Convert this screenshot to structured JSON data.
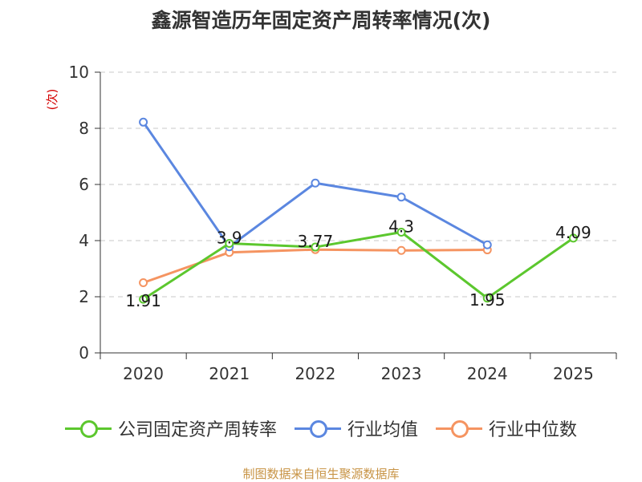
{
  "chart_data": {
    "type": "line",
    "title": "鑫源智造历年固定资产周转率情况(次)",
    "ylabel": "(次)",
    "xlabel": "",
    "ylim": [
      0,
      10
    ],
    "yticks": [
      "0",
      "2",
      "4",
      "6",
      "8",
      "10"
    ],
    "categories": [
      "2020",
      "2021",
      "2022",
      "2023",
      "2024",
      "2025"
    ],
    "grid": true,
    "legend_position": "bottom",
    "series": [
      {
        "name": "公司固定资产周转率",
        "color": "#5cc72e",
        "values": [
          1.91,
          3.9,
          3.77,
          4.3,
          1.95,
          4.09
        ],
        "labels": [
          "1.91",
          "3.9",
          "3.77",
          "4.3",
          "1.95",
          "4.09"
        ]
      },
      {
        "name": "行业均值",
        "color": "#5b87e0",
        "values": [
          8.22,
          3.78,
          6.05,
          5.55,
          3.85,
          null
        ]
      },
      {
        "name": "行业中位数",
        "color": "#f59461",
        "values": [
          2.5,
          3.58,
          3.68,
          3.65,
          3.67,
          null
        ]
      }
    ]
  },
  "source": "制图数据来自恒生聚源数据库"
}
